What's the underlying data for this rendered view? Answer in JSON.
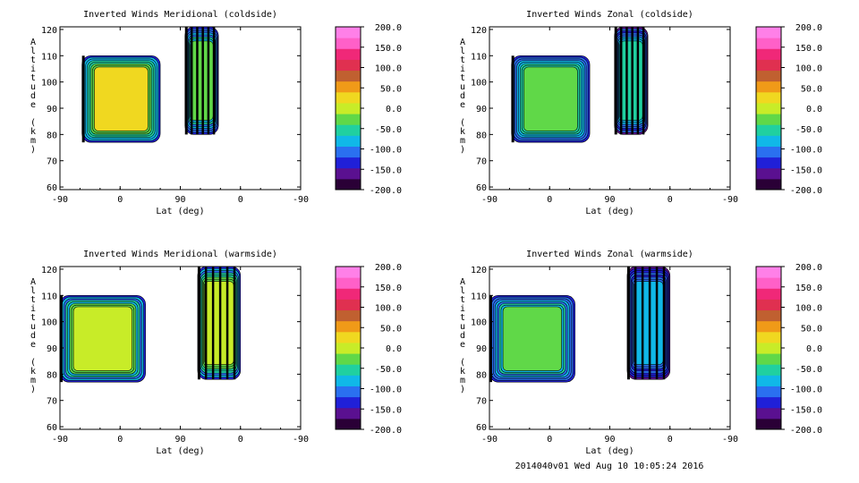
{
  "footer": "2014040v01 Wed Aug 10 10:05:24 2016",
  "chart_data": [
    {
      "type": "heatmap",
      "title": "Inverted Winds Meridional (coldside)",
      "xlabel": "Lat (deg)",
      "ylabel": "Altitude (km)",
      "x_ticks": [
        "-90",
        "0",
        "90",
        "0",
        "-90"
      ],
      "y_ticks": [
        "60",
        "70",
        "80",
        "90",
        "100",
        "110",
        "120"
      ],
      "ylim": [
        59,
        121
      ],
      "colorbar_ticks": [
        "200.0",
        "150.0",
        "100.0",
        "50.0",
        "0.0",
        "-50.0",
        "-100.0",
        "-150.0",
        "-200.0"
      ],
      "colorbar_range": [
        -200,
        200
      ],
      "regions": [
        {
          "x_range": [
            -57,
            60
          ],
          "alt_range": [
            77,
            110
          ],
          "mean_wind": 20
        },
        {
          "x_range": [
            97,
            147
          ],
          "alt_range": [
            80,
            121
          ],
          "mean_wind": -40
        }
      ]
    },
    {
      "type": "heatmap",
      "title": "Inverted Winds Zonal (coldside)",
      "xlabel": "Lat (deg)",
      "ylabel": "Altitude (km)",
      "x_ticks": [
        "-90",
        "0",
        "90",
        "0",
        "-90"
      ],
      "y_ticks": [
        "60",
        "70",
        "80",
        "90",
        "100",
        "110",
        "120"
      ],
      "ylim": [
        59,
        121
      ],
      "colorbar_ticks": [
        "200.0",
        "150.0",
        "100.0",
        "50.0",
        "0.0",
        "-50.0",
        "-100.0",
        "-150.0",
        "-200.0"
      ],
      "colorbar_range": [
        -200,
        200
      ],
      "regions": [
        {
          "x_range": [
            -57,
            60
          ],
          "alt_range": [
            77,
            110
          ],
          "mean_wind": -20
        },
        {
          "x_range": [
            97,
            147
          ],
          "alt_range": [
            80,
            121
          ],
          "mean_wind": -60
        }
      ]
    },
    {
      "type": "heatmap",
      "title": "Inverted Winds Meridional (warmside)",
      "xlabel": "Lat (deg)",
      "ylabel": "Altitude (km)",
      "x_ticks": [
        "-90",
        "0",
        "90",
        "0",
        "-90"
      ],
      "y_ticks": [
        "60",
        "70",
        "80",
        "90",
        "100",
        "110",
        "120"
      ],
      "ylim": [
        59,
        121
      ],
      "colorbar_ticks": [
        "200.0",
        "150.0",
        "100.0",
        "50.0",
        "0.0",
        "-50.0",
        "-100.0",
        "-150.0",
        "-200.0"
      ],
      "colorbar_range": [
        -200,
        200
      ],
      "regions": [
        {
          "x_range": [
            -90,
            38
          ],
          "alt_range": [
            77,
            110
          ],
          "mean_wind": 0
        },
        {
          "x_range": [
            116,
            180
          ],
          "alt_range": [
            78,
            121
          ],
          "mean_wind": 10
        }
      ]
    },
    {
      "type": "heatmap",
      "title": "Inverted Winds Zonal (warmside)",
      "xlabel": "Lat (deg)",
      "ylabel": "Altitude (km)",
      "x_ticks": [
        "-90",
        "0",
        "90",
        "0",
        "-90"
      ],
      "y_ticks": [
        "60",
        "70",
        "80",
        "90",
        "100",
        "110",
        "120"
      ],
      "ylim": [
        59,
        121
      ],
      "colorbar_ticks": [
        "200.0",
        "150.0",
        "100.0",
        "50.0",
        "0.0",
        "-50.0",
        "-100.0",
        "-150.0",
        "-200.0"
      ],
      "colorbar_range": [
        -200,
        200
      ],
      "regions": [
        {
          "x_range": [
            -90,
            38
          ],
          "alt_range": [
            77,
            110
          ],
          "mean_wind": -40
        },
        {
          "x_range": [
            116,
            180
          ],
          "alt_range": [
            78,
            121
          ],
          "mean_wind": -90
        }
      ]
    }
  ]
}
